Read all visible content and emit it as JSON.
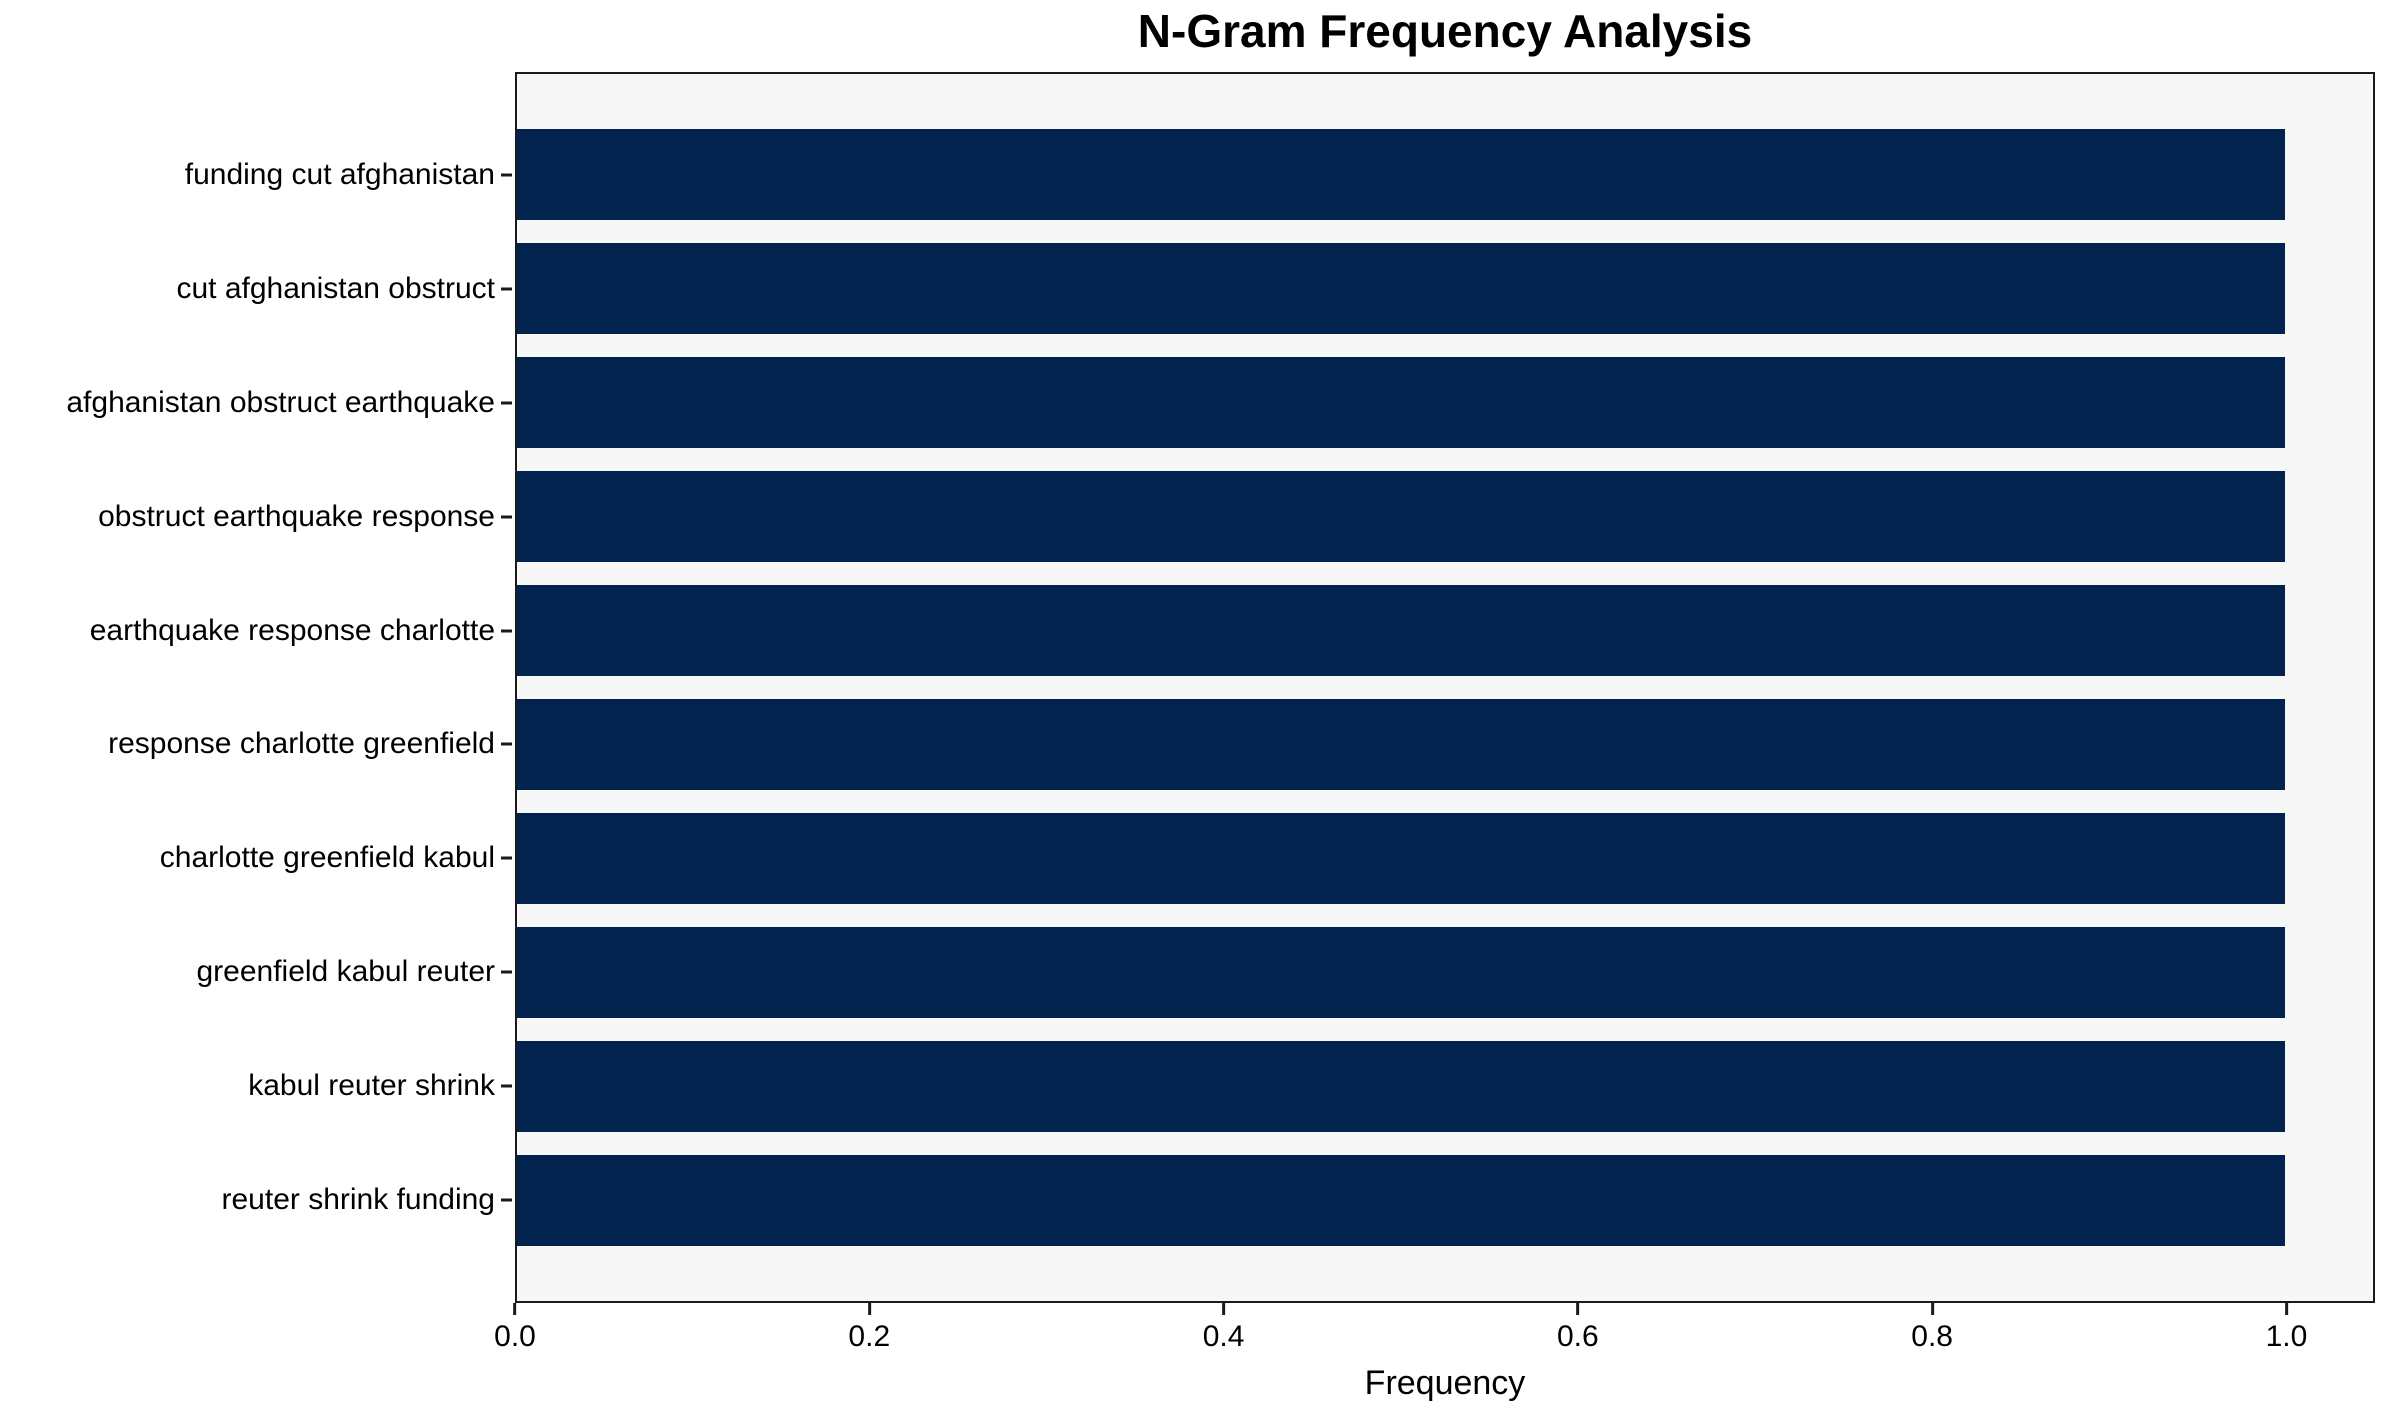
{
  "chart_data": {
    "type": "bar",
    "orientation": "horizontal",
    "title": "N-Gram Frequency Analysis",
    "xlabel": "Frequency",
    "ylabel": "",
    "categories": [
      "funding cut afghanistan",
      "cut afghanistan obstruct",
      "afghanistan obstruct earthquake",
      "obstruct earthquake response",
      "earthquake response charlotte",
      "response charlotte greenfield",
      "charlotte greenfield kabul",
      "greenfield kabul reuter",
      "kabul reuter shrink",
      "reuter shrink funding"
    ],
    "values": [
      1.0,
      1.0,
      1.0,
      1.0,
      1.0,
      1.0,
      1.0,
      1.0,
      1.0,
      1.0
    ],
    "xlim": [
      0,
      1.05
    ],
    "xticks": [
      "0.0",
      "0.2",
      "0.4",
      "0.6",
      "0.8",
      "1.0"
    ],
    "xtick_values": [
      0.0,
      0.2,
      0.4,
      0.6,
      0.8,
      1.0
    ],
    "grid": false,
    "legend": "none",
    "colors": {
      "bar": "#02234d",
      "plot_background": "#f7f7f7",
      "figure_background": "#ffffff",
      "spine": "#1a1a1a",
      "text": "#000000"
    }
  }
}
